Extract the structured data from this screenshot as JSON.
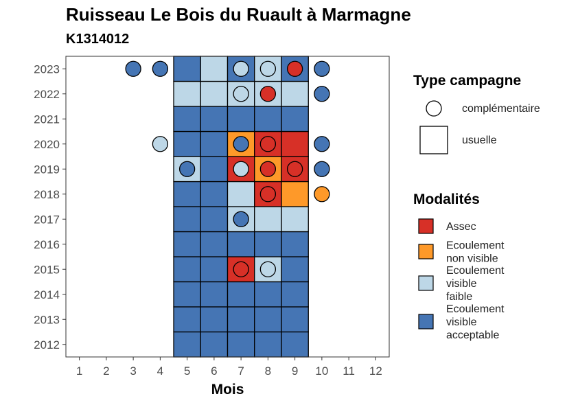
{
  "chart_data": {
    "type": "heatmap",
    "title": "Ruisseau Le Bois du Ruault à Marmagne",
    "subtitle": "K1314012",
    "xlabel": "Mois",
    "ylabel": "",
    "x_ticks": [
      "1",
      "2",
      "3",
      "4",
      "5",
      "6",
      "7",
      "8",
      "9",
      "10",
      "11",
      "12"
    ],
    "y_ticks": [
      "2012",
      "2013",
      "2014",
      "2015",
      "2016",
      "2017",
      "2018",
      "2019",
      "2020",
      "2021",
      "2022",
      "2023"
    ],
    "xlim": [
      0.5,
      12.5
    ],
    "ylim": [
      2011.5,
      2023.5
    ],
    "grid": false,
    "legend_type_title": "Type campagne",
    "legend_type": [
      {
        "key": "complementaire",
        "label": "complémentaire",
        "shape": "circle"
      },
      {
        "key": "usuelle",
        "label": "usuelle",
        "shape": "square"
      }
    ],
    "legend_modalites_title": "Modalités",
    "modalites": [
      {
        "key": "assec",
        "label_lines": [
          "Assec"
        ],
        "color": "#d73027"
      },
      {
        "key": "nonvisible",
        "label_lines": [
          "Ecoulement",
          "non visible"
        ],
        "color": "#fe9929"
      },
      {
        "key": "faible",
        "label_lines": [
          "Ecoulement",
          "visible",
          "faible"
        ],
        "color": "#bdd7e7"
      },
      {
        "key": "acceptable",
        "label_lines": [
          "Ecoulement",
          "visible",
          "acceptable"
        ],
        "color": "#4575b4"
      }
    ],
    "usuelle": [
      {
        "year": 2012,
        "month": 5,
        "mod": "acceptable"
      },
      {
        "year": 2012,
        "month": 6,
        "mod": "acceptable"
      },
      {
        "year": 2012,
        "month": 7,
        "mod": "acceptable"
      },
      {
        "year": 2012,
        "month": 8,
        "mod": "acceptable"
      },
      {
        "year": 2012,
        "month": 9,
        "mod": "acceptable"
      },
      {
        "year": 2013,
        "month": 5,
        "mod": "acceptable"
      },
      {
        "year": 2013,
        "month": 6,
        "mod": "acceptable"
      },
      {
        "year": 2013,
        "month": 7,
        "mod": "acceptable"
      },
      {
        "year": 2013,
        "month": 8,
        "mod": "acceptable"
      },
      {
        "year": 2013,
        "month": 9,
        "mod": "acceptable"
      },
      {
        "year": 2014,
        "month": 5,
        "mod": "acceptable"
      },
      {
        "year": 2014,
        "month": 6,
        "mod": "acceptable"
      },
      {
        "year": 2014,
        "month": 7,
        "mod": "acceptable"
      },
      {
        "year": 2014,
        "month": 8,
        "mod": "acceptable"
      },
      {
        "year": 2014,
        "month": 9,
        "mod": "acceptable"
      },
      {
        "year": 2015,
        "month": 5,
        "mod": "acceptable"
      },
      {
        "year": 2015,
        "month": 6,
        "mod": "acceptable"
      },
      {
        "year": 2015,
        "month": 7,
        "mod": "assec"
      },
      {
        "year": 2015,
        "month": 8,
        "mod": "faible"
      },
      {
        "year": 2015,
        "month": 9,
        "mod": "acceptable"
      },
      {
        "year": 2016,
        "month": 5,
        "mod": "acceptable"
      },
      {
        "year": 2016,
        "month": 6,
        "mod": "acceptable"
      },
      {
        "year": 2016,
        "month": 7,
        "mod": "acceptable"
      },
      {
        "year": 2016,
        "month": 8,
        "mod": "acceptable"
      },
      {
        "year": 2016,
        "month": 9,
        "mod": "acceptable"
      },
      {
        "year": 2017,
        "month": 5,
        "mod": "acceptable"
      },
      {
        "year": 2017,
        "month": 6,
        "mod": "acceptable"
      },
      {
        "year": 2017,
        "month": 7,
        "mod": "faible"
      },
      {
        "year": 2017,
        "month": 8,
        "mod": "faible"
      },
      {
        "year": 2017,
        "month": 9,
        "mod": "faible"
      },
      {
        "year": 2018,
        "month": 5,
        "mod": "acceptable"
      },
      {
        "year": 2018,
        "month": 6,
        "mod": "acceptable"
      },
      {
        "year": 2018,
        "month": 7,
        "mod": "faible"
      },
      {
        "year": 2018,
        "month": 8,
        "mod": "assec"
      },
      {
        "year": 2018,
        "month": 9,
        "mod": "nonvisible"
      },
      {
        "year": 2019,
        "month": 5,
        "mod": "faible"
      },
      {
        "year": 2019,
        "month": 6,
        "mod": "acceptable"
      },
      {
        "year": 2019,
        "month": 7,
        "mod": "assec"
      },
      {
        "year": 2019,
        "month": 8,
        "mod": "nonvisible"
      },
      {
        "year": 2019,
        "month": 9,
        "mod": "assec"
      },
      {
        "year": 2020,
        "month": 5,
        "mod": "acceptable"
      },
      {
        "year": 2020,
        "month": 6,
        "mod": "acceptable"
      },
      {
        "year": 2020,
        "month": 7,
        "mod": "nonvisible"
      },
      {
        "year": 2020,
        "month": 8,
        "mod": "assec"
      },
      {
        "year": 2020,
        "month": 9,
        "mod": "assec"
      },
      {
        "year": 2021,
        "month": 5,
        "mod": "acceptable"
      },
      {
        "year": 2021,
        "month": 6,
        "mod": "acceptable"
      },
      {
        "year": 2021,
        "month": 7,
        "mod": "acceptable"
      },
      {
        "year": 2021,
        "month": 8,
        "mod": "acceptable"
      },
      {
        "year": 2021,
        "month": 9,
        "mod": "acceptable"
      },
      {
        "year": 2022,
        "month": 5,
        "mod": "faible"
      },
      {
        "year": 2022,
        "month": 6,
        "mod": "faible"
      },
      {
        "year": 2022,
        "month": 7,
        "mod": "faible"
      },
      {
        "year": 2022,
        "month": 8,
        "mod": "faible"
      },
      {
        "year": 2022,
        "month": 9,
        "mod": "faible"
      },
      {
        "year": 2023,
        "month": 5,
        "mod": "acceptable"
      },
      {
        "year": 2023,
        "month": 6,
        "mod": "faible"
      },
      {
        "year": 2023,
        "month": 7,
        "mod": "acceptable"
      },
      {
        "year": 2023,
        "month": 8,
        "mod": "faible"
      },
      {
        "year": 2023,
        "month": 9,
        "mod": "acceptable"
      }
    ],
    "complementaire": [
      {
        "year": 2023,
        "month": 3,
        "mod": "acceptable"
      },
      {
        "year": 2023,
        "month": 4,
        "mod": "acceptable"
      },
      {
        "year": 2023,
        "month": 7,
        "mod": "faible"
      },
      {
        "year": 2023,
        "month": 8,
        "mod": "faible"
      },
      {
        "year": 2023,
        "month": 9,
        "mod": "assec"
      },
      {
        "year": 2023,
        "month": 10,
        "mod": "acceptable"
      },
      {
        "year": 2022,
        "month": 7,
        "mod": "faible"
      },
      {
        "year": 2022,
        "month": 8,
        "mod": "assec"
      },
      {
        "year": 2022,
        "month": 10,
        "mod": "acceptable"
      },
      {
        "year": 2020,
        "month": 4,
        "mod": "faible"
      },
      {
        "year": 2020,
        "month": 7,
        "mod": "acceptable"
      },
      {
        "year": 2020,
        "month": 8,
        "mod": "assec"
      },
      {
        "year": 2020,
        "month": 10,
        "mod": "acceptable"
      },
      {
        "year": 2019,
        "month": 5,
        "mod": "acceptable"
      },
      {
        "year": 2019,
        "month": 7,
        "mod": "faible"
      },
      {
        "year": 2019,
        "month": 8,
        "mod": "assec"
      },
      {
        "year": 2019,
        "month": 9,
        "mod": "assec"
      },
      {
        "year": 2019,
        "month": 10,
        "mod": "acceptable"
      },
      {
        "year": 2018,
        "month": 8,
        "mod": "assec"
      },
      {
        "year": 2018,
        "month": 10,
        "mod": "nonvisible"
      },
      {
        "year": 2017,
        "month": 7,
        "mod": "acceptable"
      },
      {
        "year": 2015,
        "month": 7,
        "mod": "assec"
      },
      {
        "year": 2015,
        "month": 8,
        "mod": "faible"
      }
    ]
  }
}
